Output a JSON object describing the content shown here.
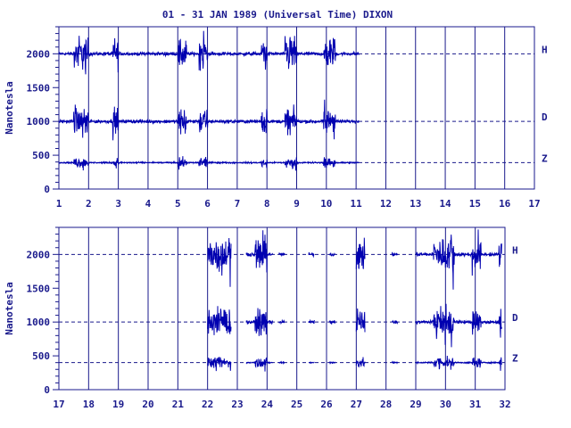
{
  "title": "01 - 31 JAN 1989 (Universal Time) DIXON",
  "colors": {
    "ink": "#1a1a8c",
    "trace": "#0000b0"
  },
  "chart_data": [
    {
      "type": "line",
      "panel": "top",
      "xlim": [
        1,
        17
      ],
      "ylim": [
        0,
        2400
      ],
      "grid": true,
      "xticks": [
        "1",
        "2",
        "3",
        "4",
        "5",
        "6",
        "7",
        "8",
        "9",
        "10",
        "11",
        "12",
        "13",
        "14",
        "15",
        "16",
        "17"
      ],
      "yticks": [
        "0",
        "500",
        "1000",
        "1500",
        "2000"
      ],
      "ylabel": "Nanotesla",
      "baselines": [
        {
          "name": "H",
          "value": 2000
        },
        {
          "name": "D",
          "value": 1000
        },
        {
          "name": "Z",
          "value": 390
        }
      ],
      "data_coverage": [
        [
          1.0,
          11.1
        ]
      ],
      "disturbances": [
        [
          1.5,
          2.0
        ],
        [
          2.8,
          3.0
        ],
        [
          5.0,
          5.3
        ],
        [
          5.7,
          6.0
        ],
        [
          7.8,
          8.0
        ],
        [
          8.6,
          9.0
        ],
        [
          9.9,
          10.3
        ]
      ]
    },
    {
      "type": "line",
      "panel": "bottom",
      "xlim": [
        17,
        32
      ],
      "ylim": [
        0,
        2400
      ],
      "grid": true,
      "xticks": [
        "17",
        "18",
        "19",
        "20",
        "21",
        "22",
        "23",
        "24",
        "25",
        "26",
        "27",
        "28",
        "29",
        "30",
        "31",
        "32"
      ],
      "yticks": [
        "0",
        "500",
        "1000",
        "1500",
        "2000"
      ],
      "ylabel": "Nanotesla",
      "baselines": [
        {
          "name": "H",
          "value": 2000
        },
        {
          "name": "D",
          "value": 1000
        },
        {
          "name": "Z",
          "value": 400
        }
      ],
      "data_coverage": [
        [
          22.0,
          22.8
        ],
        [
          23.3,
          24.2
        ],
        [
          24.4,
          24.6
        ],
        [
          25.4,
          25.6
        ],
        [
          26.1,
          26.3
        ],
        [
          27.0,
          27.3
        ],
        [
          28.2,
          28.4
        ],
        [
          29.0,
          31.9
        ]
      ],
      "disturbances": [
        [
          22.0,
          22.8
        ],
        [
          23.6,
          24.0
        ],
        [
          27.0,
          27.3
        ],
        [
          29.6,
          30.3
        ],
        [
          30.9,
          31.2
        ],
        [
          31.8,
          31.95
        ]
      ]
    }
  ]
}
